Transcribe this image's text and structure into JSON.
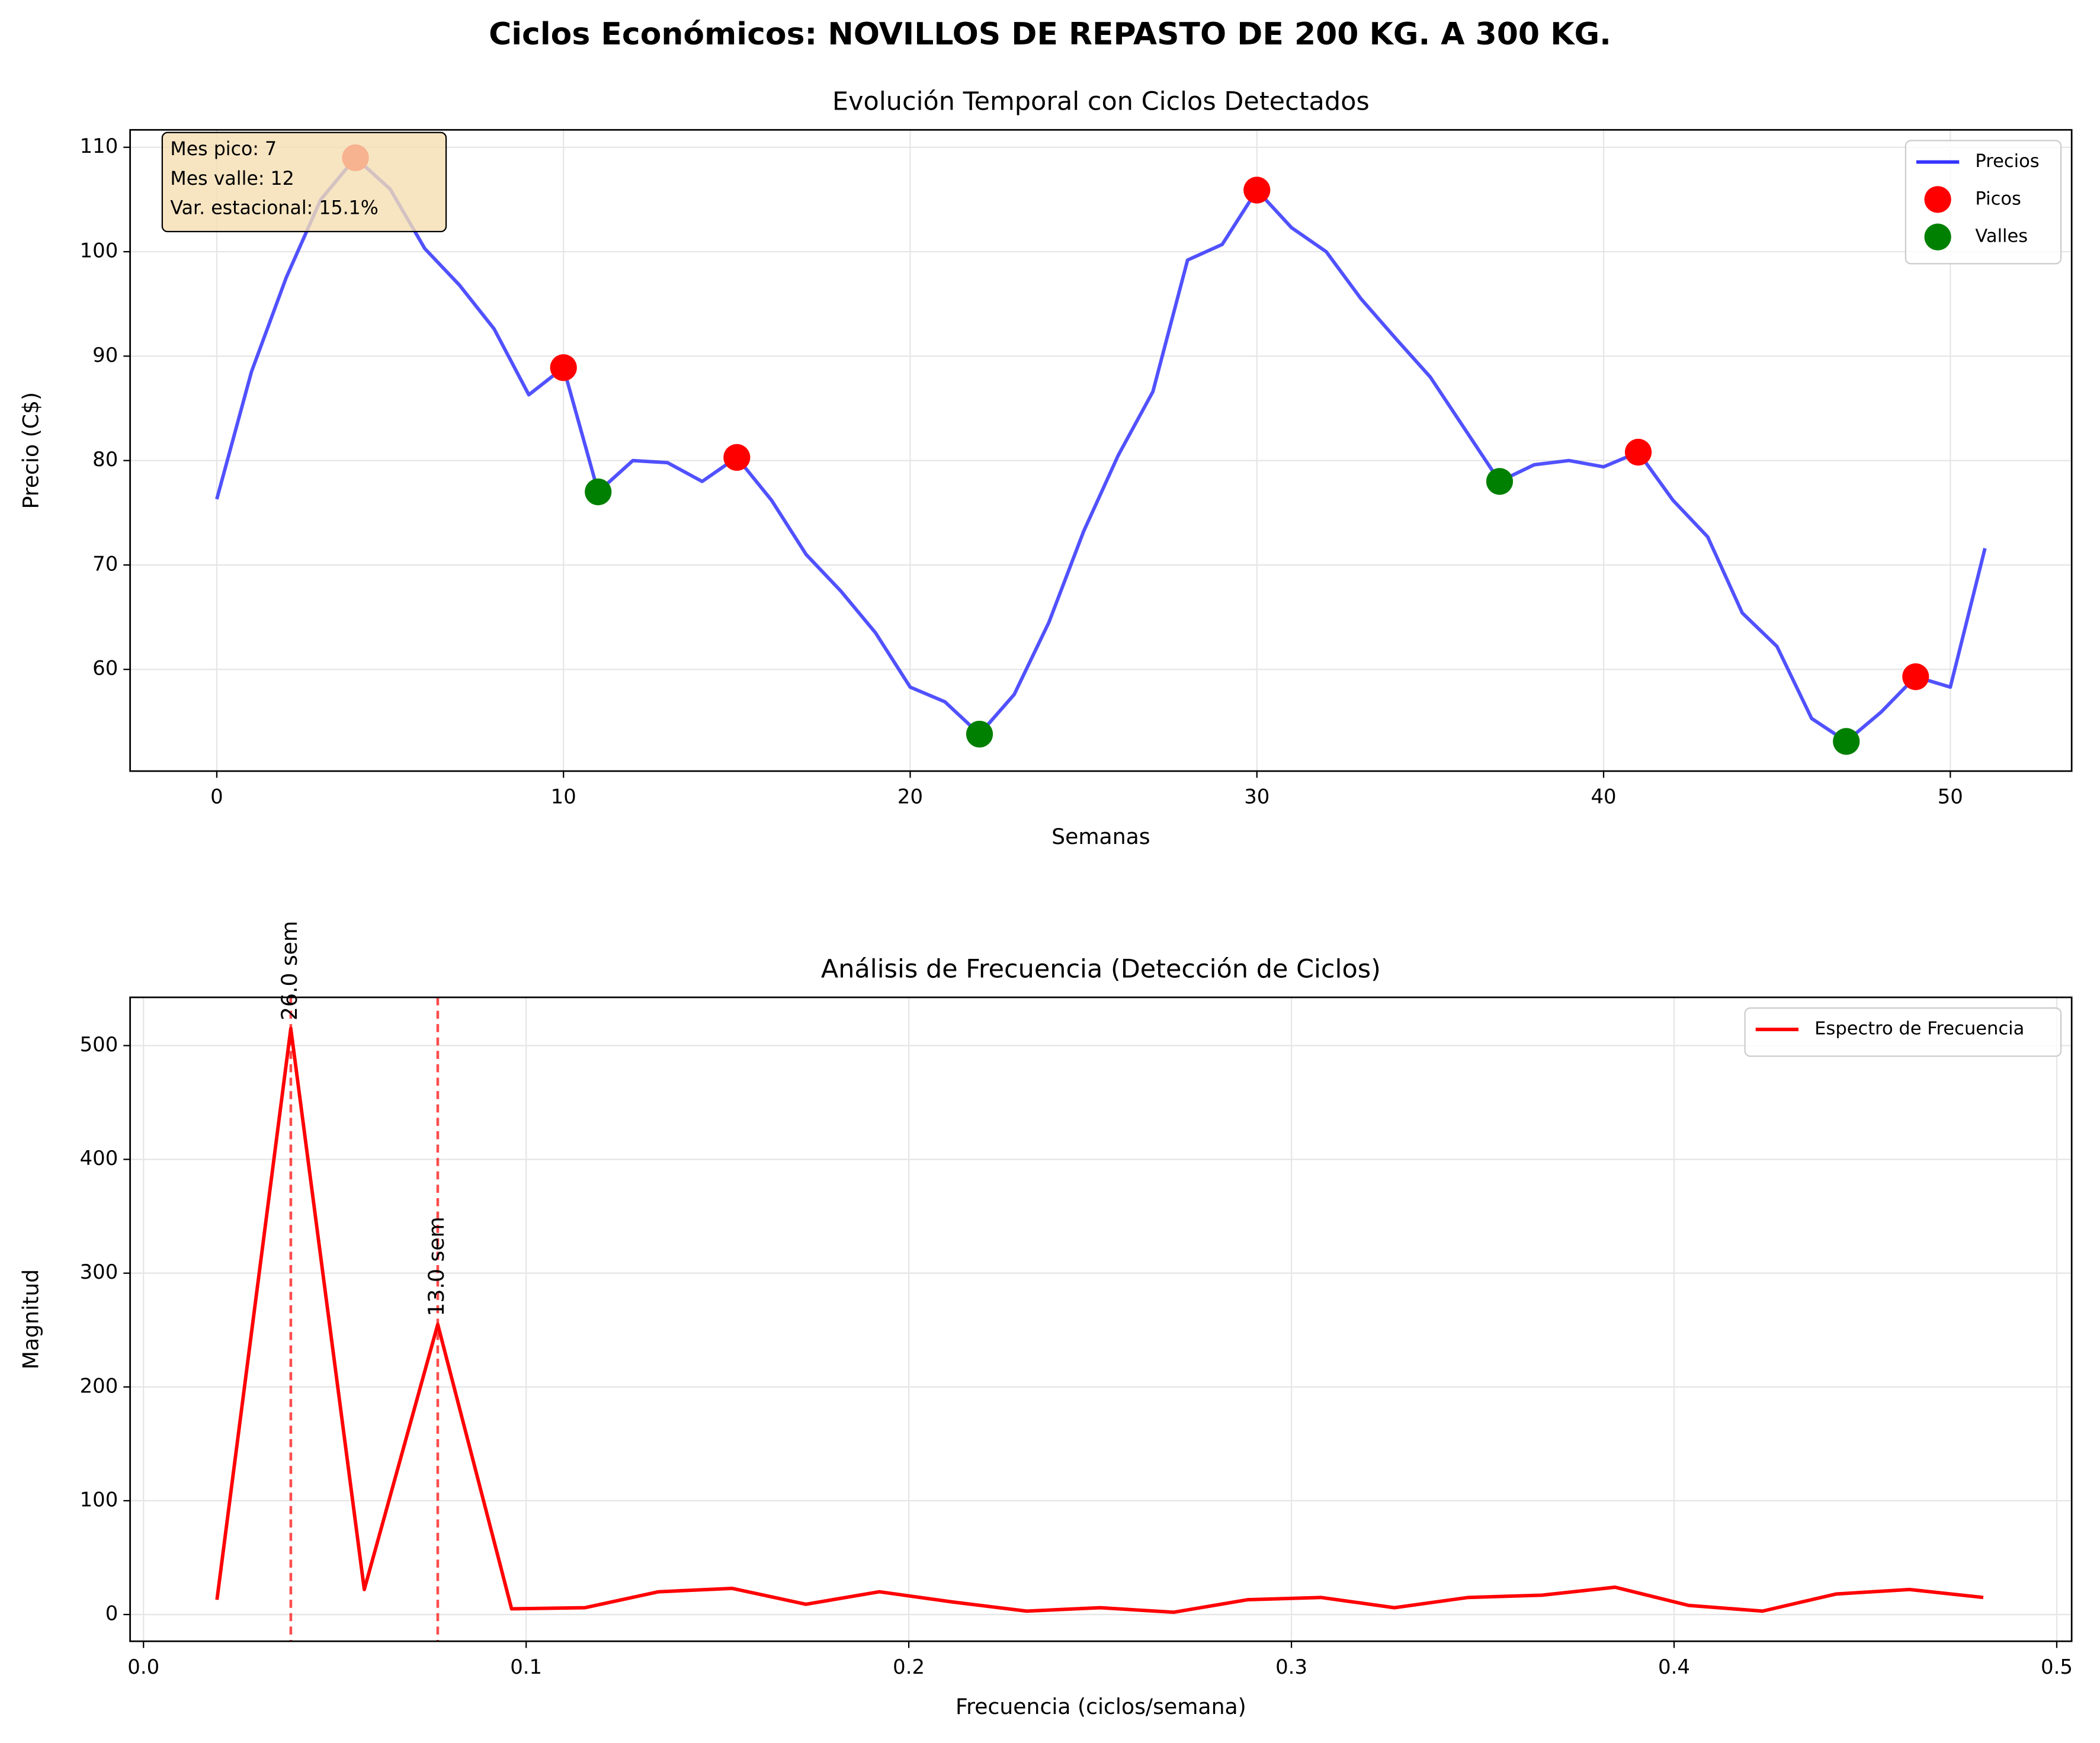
{
  "title": "Ciclos Económicos: NOVILLOS DE REPASTO DE 200 KG. A 300 KG.",
  "chart_data": [
    {
      "type": "line",
      "title": "Evolución Temporal con Ciclos Detectados",
      "x_label": "Semanas",
      "y_label": "Precio (C$)",
      "xlim": [
        -2.5,
        53.5
      ],
      "ylim": [
        50.26,
        111.67
      ],
      "xticks": [
        0,
        10,
        20,
        30,
        40,
        50
      ],
      "yticks": [
        60,
        70,
        80,
        90,
        100,
        110
      ],
      "grid": true,
      "legend": "upper right",
      "annotation": [
        "Mes pico: 7",
        "Mes valle: 12",
        "Var. estacional: 15.1%"
      ],
      "series": [
        {
          "name": "Precios",
          "type": "line",
          "color": "#3333ff",
          "x": [
            0,
            1,
            2,
            3,
            4,
            5,
            6,
            7,
            8,
            9,
            10,
            11,
            12,
            13,
            14,
            15,
            16,
            17,
            18,
            19,
            20,
            21,
            22,
            23,
            24,
            25,
            26,
            27,
            28,
            29,
            30,
            31,
            32,
            33,
            34,
            35,
            36,
            37,
            38,
            39,
            40,
            41,
            42,
            43,
            44,
            45,
            46,
            47,
            48,
            49,
            50,
            51
          ],
          "values": [
            76.3,
            88.5,
            97.5,
            105,
            109,
            106,
            100.3,
            96.8,
            92.6,
            86.3,
            88.9,
            77,
            80,
            79.8,
            78,
            80.3,
            76.2,
            71,
            67.5,
            63.5,
            58.3,
            56.9,
            53.8,
            57.6,
            64.5,
            73.2,
            80.5,
            86.6,
            99.2,
            100.7,
            105.9,
            102.3,
            100,
            95.5,
            91.7,
            88,
            83,
            78,
            79.6,
            80,
            79.4,
            80.8,
            76.2,
            72.7,
            65.4,
            62.2,
            55.3,
            53.1,
            55.9,
            59.3,
            58.3,
            71.6
          ]
        },
        {
          "name": "Picos",
          "type": "scatter",
          "color": "#ff0000",
          "x": [
            4,
            10,
            15,
            30,
            41,
            49
          ],
          "values": [
            109,
            88.9,
            80.3,
            105.9,
            80.8,
            59.3
          ]
        },
        {
          "name": "Valles",
          "type": "scatter",
          "color": "#008000",
          "x": [
            11,
            22,
            37,
            47
          ],
          "values": [
            77,
            53.8,
            78,
            53.1
          ]
        }
      ]
    },
    {
      "type": "line",
      "title": "Análisis de Frecuencia (Detección de Ciclos)",
      "x_label": "Frecuencia (ciclos/semana)",
      "y_label": "Magnitud",
      "xlim": [
        -0.0035,
        0.5039
      ],
      "ylim": [
        -23.5,
        542.4
      ],
      "xticks": [
        {
          "value": 0,
          "label": "0.0"
        },
        0.1,
        0.2,
        0.3,
        0.4,
        0.5
      ],
      "yticks": [
        0,
        100,
        200,
        300,
        400,
        500
      ],
      "grid": true,
      "legend": "upper right",
      "series": [
        {
          "name": "Espectro de Frecuencia",
          "type": "line",
          "color": "#ff0000",
          "x": [
            0.0192,
            0.0385,
            0.0577,
            0.0769,
            0.0962,
            0.1154,
            0.1346,
            0.1538,
            0.1731,
            0.1923,
            0.2115,
            0.2308,
            0.25,
            0.2692,
            0.2885,
            0.3077,
            0.3269,
            0.3462,
            0.3654,
            0.3846,
            0.4038,
            0.4231,
            0.4423,
            0.4615,
            0.4808
          ],
          "values": [
            13,
            515,
            22,
            255,
            5,
            6,
            20,
            23,
            9,
            20,
            11,
            3,
            6,
            2,
            13,
            15,
            6,
            15,
            17,
            24,
            8,
            3,
            18,
            22,
            15
          ]
        }
      ],
      "vlines": [
        {
          "x": 0.0385,
          "y": 515,
          "label": "26.0 sem"
        },
        {
          "x": 0.0769,
          "y": 255,
          "label": "13.0 sem"
        }
      ]
    }
  ]
}
